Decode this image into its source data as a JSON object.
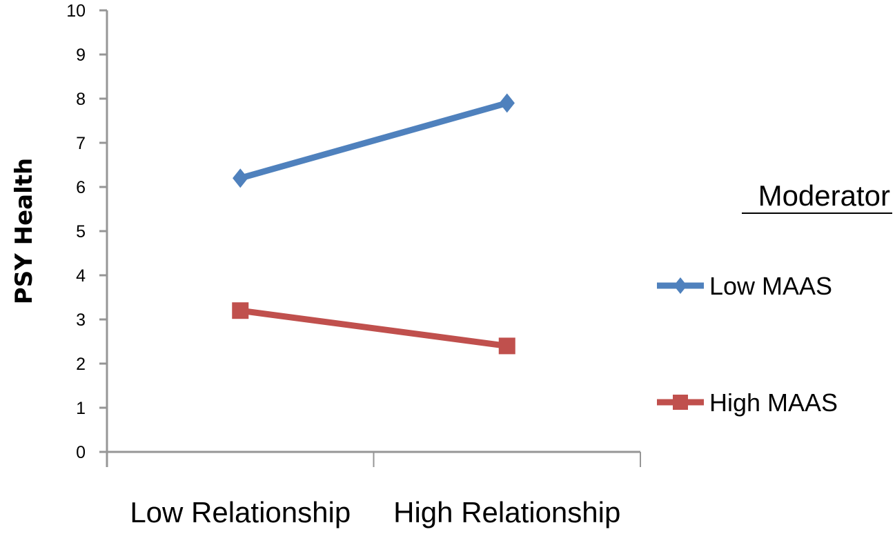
{
  "chart_data": {
    "type": "line",
    "title": "",
    "xlabel": "",
    "ylabel": "PSY Health",
    "ylim": [
      0,
      10
    ],
    "yticks": [
      0,
      1,
      2,
      3,
      4,
      5,
      6,
      7,
      8,
      9,
      10
    ],
    "categories": [
      "Low Relationship",
      "High Relationship"
    ],
    "grid": false,
    "legend": {
      "title": "Moderator",
      "position": "right"
    },
    "series": [
      {
        "name": "Low MAAS",
        "color": "#4F81BD",
        "marker": "diamond",
        "values": [
          6.2,
          7.9
        ]
      },
      {
        "name": "High MAAS",
        "color": "#C0504D",
        "marker": "square",
        "values": [
          3.2,
          2.4
        ]
      }
    ]
  },
  "colors": {
    "axis": "#969696"
  }
}
